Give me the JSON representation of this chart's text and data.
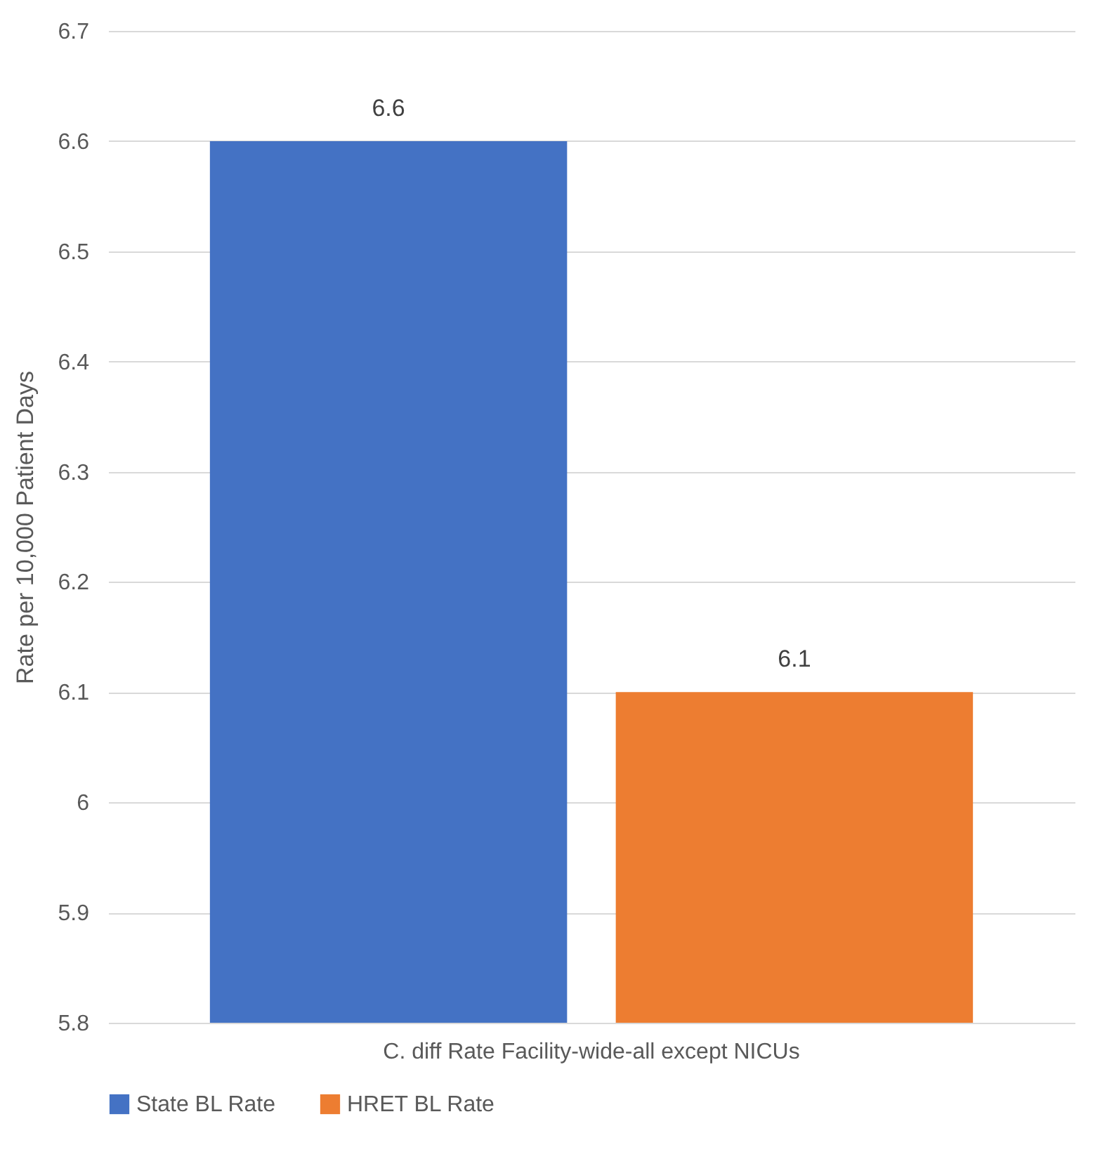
{
  "chart_data": {
    "type": "bar",
    "ylabel": "Rate per 10,000 Patient Days",
    "categories": [
      "C. diff Rate Facility-wide-all except NICUs"
    ],
    "series": [
      {
        "name": "State BL Rate",
        "color": "#4472c4",
        "values": [
          6.6
        ]
      },
      {
        "name": "HRET BL Rate",
        "color": "#ed7d31",
        "values": [
          6.1
        ]
      }
    ],
    "ylim": [
      5.8,
      6.7
    ],
    "yticks": [
      5.8,
      5.9,
      6,
      6.1,
      6.2,
      6.3,
      6.4,
      6.5,
      6.6,
      6.7
    ],
    "grid": "y",
    "legend": "bottom",
    "data_labels": true
  }
}
